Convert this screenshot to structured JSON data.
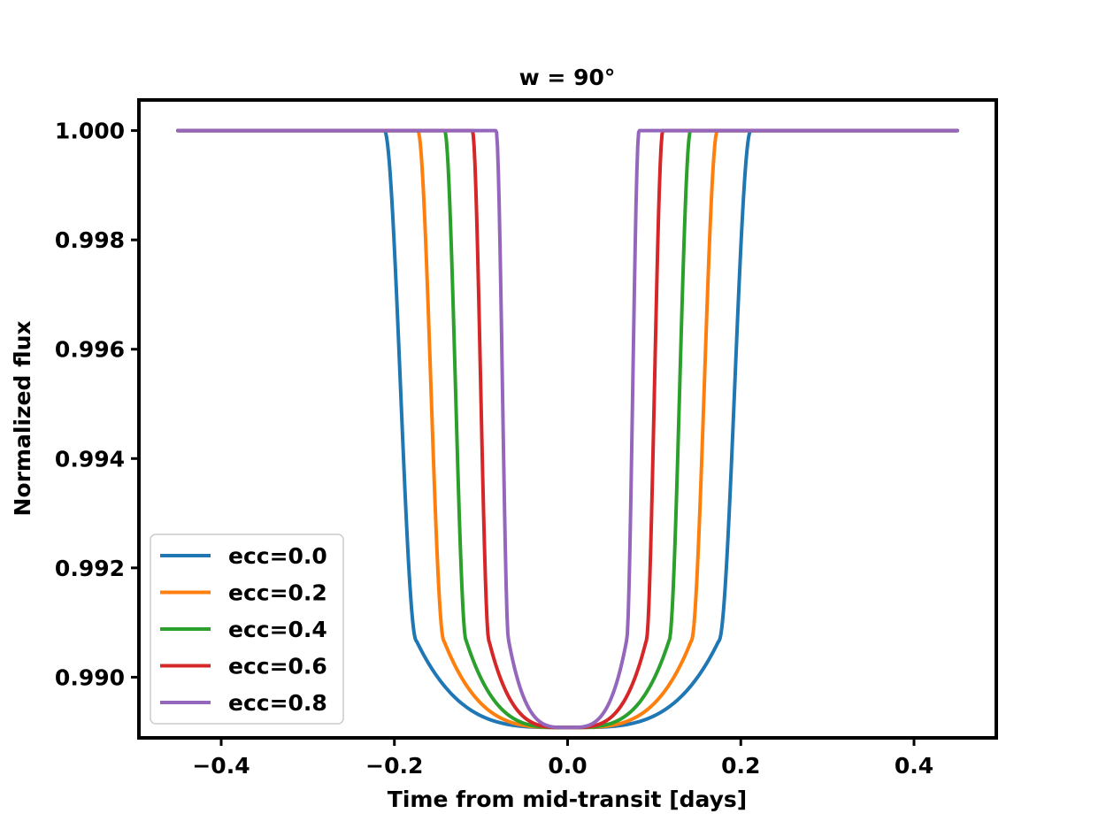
{
  "chart_data": {
    "type": "line",
    "title": "w = 90°",
    "xlabel": "Time from mid-transit [days]",
    "ylabel": "Normalized flux",
    "xlim": [
      -0.495,
      0.495
    ],
    "ylim": [
      0.98889,
      1.00056
    ],
    "x_ticks": [
      -0.4,
      -0.2,
      0.0,
      0.2,
      0.4
    ],
    "x_tick_labels": [
      "−0.4",
      "−0.2",
      "0.0",
      "0.2",
      "0.4"
    ],
    "y_ticks": [
      0.99,
      0.992,
      0.994,
      0.996,
      0.998,
      1.0
    ],
    "y_tick_labels": [
      "0.990",
      "0.992",
      "0.994",
      "0.996",
      "0.998",
      "1.000"
    ],
    "x_range": [
      -0.45,
      0.45
    ],
    "min_flux": 0.98908,
    "grid": false,
    "legend": {
      "placement": "lower-left"
    },
    "series": [
      {
        "name": "ecc=0.0",
        "color": "#1f77b4",
        "t14": 0.2115,
        "t23": 0.1745
      },
      {
        "name": "ecc=0.2",
        "color": "#ff7f0e",
        "t14": 0.173,
        "t23": 0.1427
      },
      {
        "name": "ecc=0.4",
        "color": "#2ca02c",
        "t14": 0.142,
        "t23": 0.117
      },
      {
        "name": "ecc=0.6",
        "color": "#d62728",
        "t14": 0.11,
        "t23": 0.0907
      },
      {
        "name": "ecc=0.8",
        "color": "#9467bd",
        "t14": 0.0825,
        "t23": 0.068
      }
    ]
  }
}
